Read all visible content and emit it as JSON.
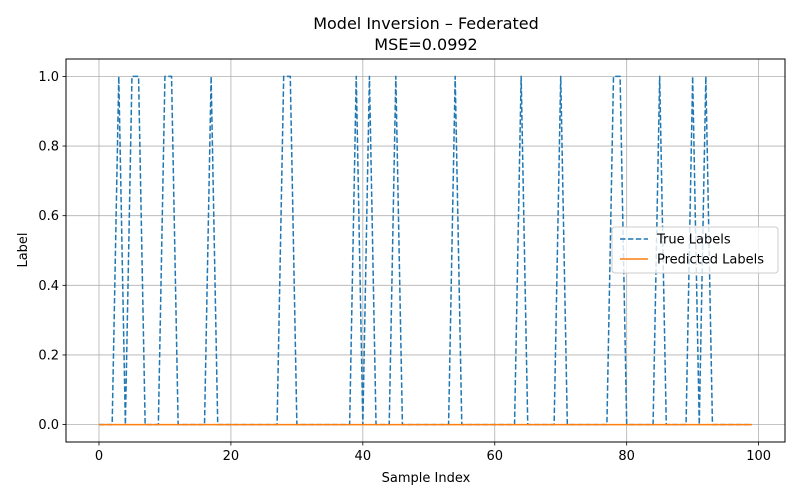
{
  "chart_data": {
    "type": "line",
    "title": "Model Inversion – Federated",
    "subtitle": "MSE=0.0992",
    "xlabel": "Sample Index",
    "ylabel": "Label",
    "xlim": [
      -5,
      104
    ],
    "ylim": [
      -0.05,
      1.05
    ],
    "xticks": [
      0,
      20,
      40,
      60,
      80,
      100
    ],
    "yticks": [
      0.0,
      0.2,
      0.4,
      0.6,
      0.8,
      1.0
    ],
    "xtick_labels": [
      "0",
      "20",
      "40",
      "60",
      "80",
      "100"
    ],
    "ytick_labels": [
      "0.0",
      "0.2",
      "0.4",
      "0.6",
      "0.8",
      "1.0"
    ],
    "grid": true,
    "legend": "center-right",
    "x": [
      0,
      1,
      2,
      3,
      4,
      5,
      6,
      7,
      8,
      9,
      10,
      11,
      12,
      13,
      14,
      15,
      16,
      17,
      18,
      19,
      20,
      21,
      22,
      23,
      24,
      25,
      26,
      27,
      28,
      29,
      30,
      31,
      32,
      33,
      34,
      35,
      36,
      37,
      38,
      39,
      40,
      41,
      42,
      43,
      44,
      45,
      46,
      47,
      48,
      49,
      50,
      51,
      52,
      53,
      54,
      55,
      56,
      57,
      58,
      59,
      60,
      61,
      62,
      63,
      64,
      65,
      66,
      67,
      68,
      69,
      70,
      71,
      72,
      73,
      74,
      75,
      76,
      77,
      78,
      79,
      80,
      81,
      82,
      83,
      84,
      85,
      86,
      87,
      88,
      89,
      90,
      91,
      92,
      93,
      94,
      95,
      96,
      97,
      98,
      99
    ],
    "series": [
      {
        "name": "True Labels",
        "color": "#1f77b4",
        "dashed": true,
        "values": [
          0,
          0,
          0,
          1,
          0,
          1,
          1,
          0,
          0,
          0,
          1,
          1,
          0,
          0,
          0,
          0,
          0,
          1,
          0,
          0,
          0,
          0,
          0,
          0,
          0,
          0,
          0,
          0,
          1,
          1,
          0,
          0,
          0,
          0,
          0,
          0,
          0,
          0,
          0,
          1,
          0,
          1,
          0,
          0,
          0,
          1,
          0,
          0,
          0,
          0,
          0,
          0,
          0,
          0,
          1,
          0,
          0,
          0,
          0,
          0,
          0,
          0,
          0,
          0,
          1,
          0,
          0,
          0,
          0,
          0,
          1,
          0,
          0,
          0,
          0,
          0,
          0,
          0,
          1,
          1,
          0,
          0,
          0,
          0,
          0,
          1,
          0,
          0,
          0,
          0,
          1,
          0,
          1,
          0,
          0,
          0,
          0,
          0,
          0,
          0
        ]
      },
      {
        "name": "Predicted Labels",
        "color": "#ff7f0e",
        "dashed": false,
        "values": [
          0,
          0,
          0,
          0,
          0,
          0,
          0,
          0,
          0,
          0,
          0,
          0,
          0,
          0,
          0,
          0,
          0,
          0,
          0,
          0,
          0,
          0,
          0,
          0,
          0,
          0,
          0,
          0,
          0,
          0,
          0,
          0,
          0,
          0,
          0,
          0,
          0,
          0,
          0,
          0,
          0,
          0,
          0,
          0,
          0,
          0,
          0,
          0,
          0,
          0,
          0,
          0,
          0,
          0,
          0,
          0,
          0,
          0,
          0,
          0,
          0,
          0,
          0,
          0,
          0,
          0,
          0,
          0,
          0,
          0,
          0,
          0,
          0,
          0,
          0,
          0,
          0,
          0,
          0,
          0,
          0,
          0,
          0,
          0,
          0,
          0,
          0,
          0,
          0,
          0,
          0,
          0,
          0,
          0,
          0,
          0,
          0,
          0,
          0,
          0
        ]
      }
    ]
  }
}
